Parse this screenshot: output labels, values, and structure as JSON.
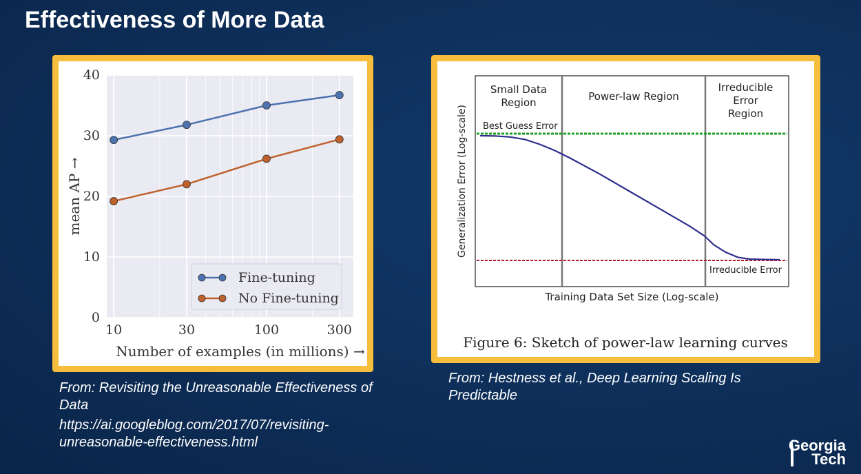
{
  "slide": {
    "title": "Effectiveness of More Data",
    "logo_line1": "Georgia",
    "logo_line2": "Tech"
  },
  "captions": {
    "left_source": "From: Revisiting the Unreasonable Effectiveness of Data",
    "left_url": "https://ai.googleblog.com/2017/07/revisiting-unreasonable-effectiveness.html",
    "right_source": "From: Hestness  et al., Deep Learning Scaling Is Predictable"
  },
  "chart_data": [
    {
      "type": "line",
      "x_scale": "log",
      "x": [
        10,
        30,
        100,
        300
      ],
      "x_ticks": [
        "10",
        "30",
        "100",
        "300"
      ],
      "xlim": [
        9,
        370
      ],
      "y_ticks": [
        "0",
        "10",
        "20",
        "30",
        "40"
      ],
      "ylim": [
        0,
        40
      ],
      "xlabel": "Number of examples (in millions) →",
      "ylabel": "mean AP →",
      "grid": true,
      "legend_position": "bottom-right",
      "series": [
        {
          "name": "Fine-tuning",
          "values": [
            29.3,
            31.8,
            35.0,
            36.7
          ],
          "color": "#4c72b0"
        },
        {
          "name": "No Fine-tuning",
          "values": [
            19.2,
            22.0,
            26.2,
            29.4
          ],
          "color": "#c0602c"
        }
      ]
    },
    {
      "type": "line",
      "title": "",
      "caption": "Figure 6: Sketch of power-law learning curves",
      "xlabel": "Training Data Set Size (Log-scale)",
      "ylabel": "Generalization Error (Log-scale)",
      "regions": [
        "Small Data Region",
        "Power-law Region",
        "Irreducible Error Region"
      ],
      "region_labels": [
        [
          "Small Data",
          "Region"
        ],
        [
          "Power-law Region"
        ],
        [
          "Irreducible",
          "Error",
          "Region"
        ]
      ],
      "reference_lines": [
        {
          "label": "Best Guess Error",
          "color": "#1f9e1f"
        },
        {
          "label": "Irreducible Error",
          "color": "#b0182c"
        }
      ],
      "curve_color": "#2d2d8f",
      "curve": {
        "x": [
          0,
          0.05,
          0.1,
          0.15,
          0.2,
          0.25,
          0.3,
          0.4,
          0.5,
          0.6,
          0.7,
          0.75,
          0.78,
          0.82,
          0.86,
          0.9,
          0.95,
          1.0
        ],
        "y": [
          1.0,
          0.998,
          0.99,
          0.97,
          0.93,
          0.88,
          0.82,
          0.69,
          0.55,
          0.41,
          0.27,
          0.19,
          0.12,
          0.06,
          0.02,
          0.005,
          0.002,
          0.0
        ]
      }
    }
  ]
}
